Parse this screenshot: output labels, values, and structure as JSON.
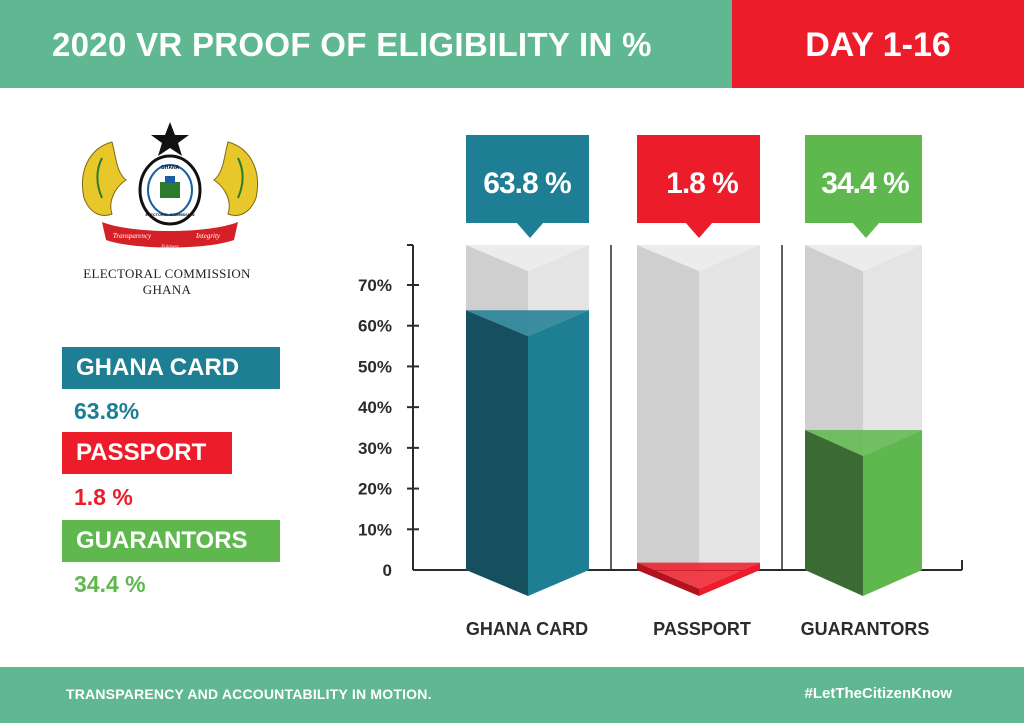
{
  "header": {
    "title": "2020 VR PROOF OF ELIGIBILITY IN %",
    "day": "DAY 1-16"
  },
  "logo": {
    "org_line1": "ELECTORAL COMMISSION",
    "org_line2": "GHANA",
    "seal_ring": "GHANA",
    "seal_ring2": "ELECTORAL COMMISSION",
    "ribbon_left": "Transparency",
    "ribbon_right": "Integrity",
    "ribbon_bottom": "Fairness"
  },
  "legend": [
    {
      "name": "GHANA CARD",
      "value": "63.8%",
      "color": "#1e7e93"
    },
    {
      "name": "PASSPORT",
      "value": "1.8 %",
      "color": "#ec1c2a"
    },
    {
      "name": "GUARANTORS",
      "value": "34.4 %",
      "color": "#5fb84e"
    }
  ],
  "footer": {
    "left": "TRANSPARENCY AND ACCOUNTABILITY IN MOTION.",
    "right": "#LetTheCitizenKnow"
  },
  "chart_data": {
    "type": "bar",
    "categories": [
      "GHANA CARD",
      "PASSPORT",
      "GUARANTORS"
    ],
    "values": [
      63.8,
      1.8,
      34.4
    ],
    "data_labels": [
      "63.8 %",
      "1.8 %",
      "34.4 %"
    ],
    "ytick_labels": [
      "0",
      "10%",
      "20%",
      "30%",
      "40%",
      "50%",
      "60%",
      "70%"
    ],
    "ytick_values": [
      0,
      10,
      20,
      30,
      40,
      50,
      60,
      70
    ],
    "ylim": [
      0,
      70
    ],
    "colors": [
      "#1e7e93",
      "#ec1c2a",
      "#5fb84e"
    ],
    "shade_colors": [
      "#164f5e",
      "#b2131f",
      "#3b6b33"
    ],
    "grid": false,
    "legend_position": "left"
  }
}
